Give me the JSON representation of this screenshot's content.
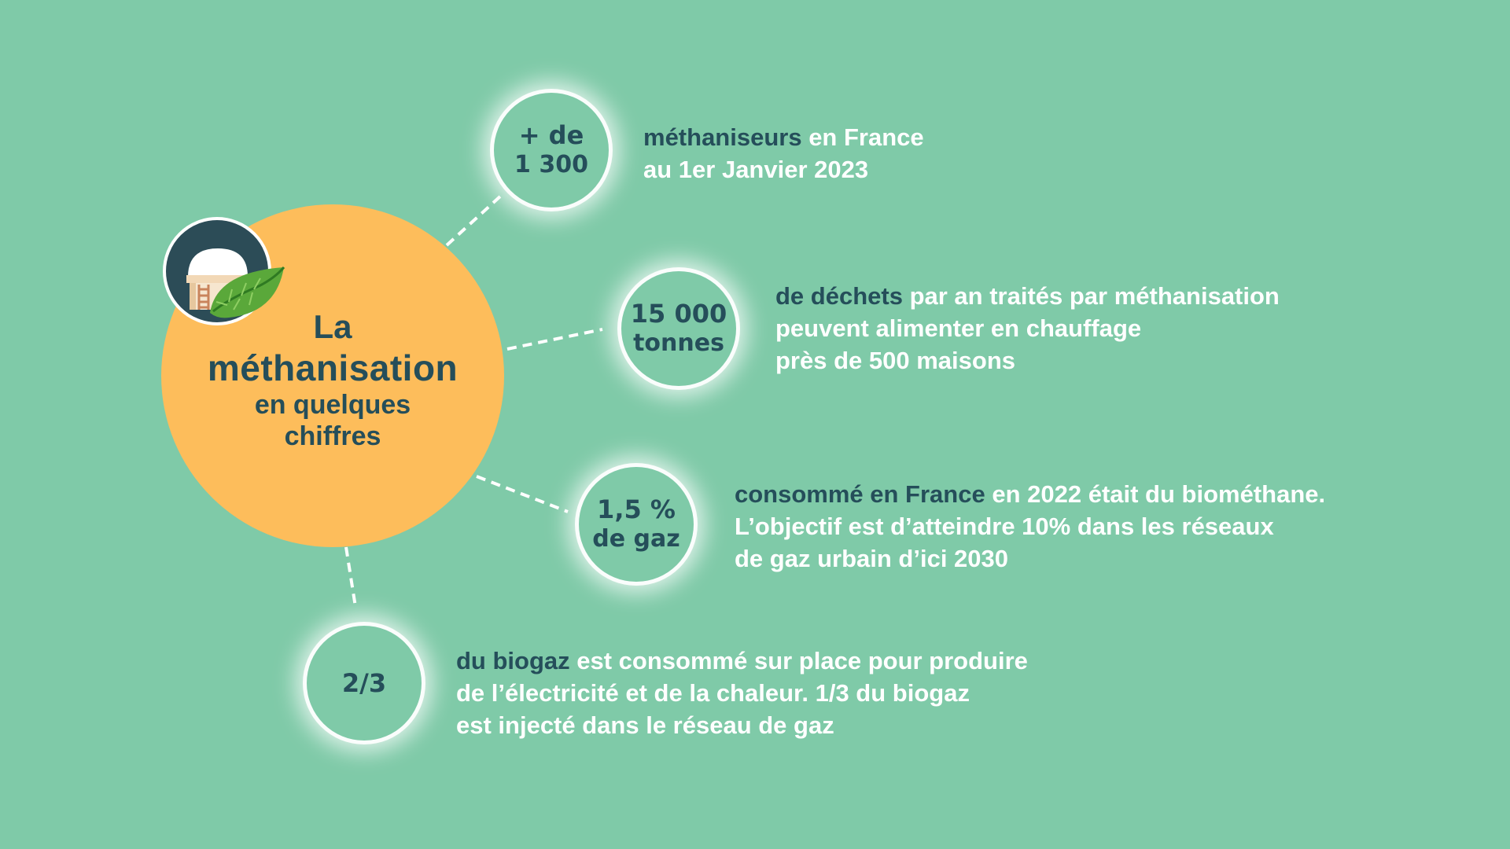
{
  "title": {
    "line1": "La",
    "line2": "méthanisation",
    "line3": "en quelques",
    "line4": "chiffres"
  },
  "badge": {
    "icon": "methanizer-leaf-icon"
  },
  "stats": [
    {
      "value_line1": "+ de",
      "value_line2": "1 300",
      "lines": [
        {
          "highlight": "méthaniseurs",
          "text": " en France"
        },
        {
          "highlight": "",
          "text": "au 1er Janvier 2023"
        }
      ]
    },
    {
      "value_line1": "15 000",
      "value_line2": "tonnes",
      "lines": [
        {
          "highlight": "de déchets",
          "text": " par an traités par méthanisation"
        },
        {
          "highlight": "",
          "text": "peuvent alimenter en chauffage"
        },
        {
          "highlight": "",
          "text": "près de 500 maisons"
        }
      ]
    },
    {
      "value_line1": "1,5 %",
      "value_line2": "de gaz",
      "lines": [
        {
          "highlight": "consommé en France",
          "text": " en 2022 était du biométhane."
        },
        {
          "highlight": "",
          "text": "L’objectif est d’atteindre 10% dans les réseaux"
        },
        {
          "highlight": "",
          "text": "de gaz urbain d’ici 2030"
        }
      ]
    },
    {
      "value_line1": "2/3",
      "value_line2": "",
      "lines": [
        {
          "highlight": "du biogaz",
          "text": " est consommé sur place pour produire"
        },
        {
          "highlight": "",
          "text": "de l’électricité et de la chaleur. 1/3 du biogaz"
        },
        {
          "highlight": "",
          "text": "est injecté dans le réseau de gaz"
        }
      ]
    }
  ],
  "colors": {
    "background": "#7fcaa8",
    "main_circle": "#fdbd5b",
    "dark_text": "#254e5a",
    "light_text": "#ffffff"
  }
}
